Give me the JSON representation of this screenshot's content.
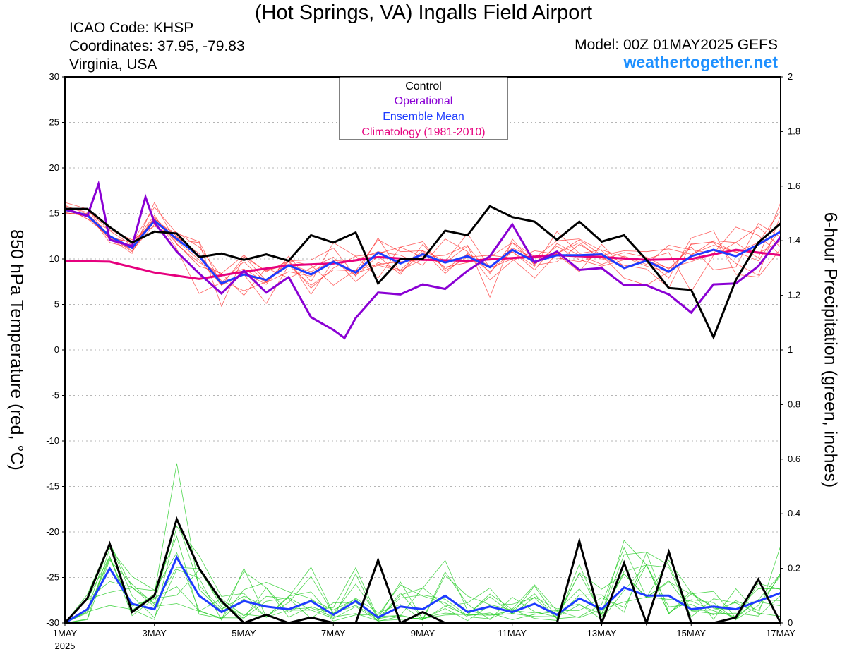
{
  "header": {
    "title": "(Hot Springs, VA) Ingalls Field Airport",
    "icao": "ICAO Code: KHSP",
    "coordinates": "Coordinates: 37.95, -79.83",
    "region": "Virginia, USA",
    "model": "Model: 00Z 01MAY2025 GEFS",
    "site": "weathertogether.net"
  },
  "chart_data": {
    "type": "line",
    "y_left_label": "850 hPa Temperature (red, °C)",
    "y_right_label": "6-hour Precipitation (green, inches)",
    "y_left_range": [
      -30,
      30
    ],
    "y_right_range": [
      0,
      2
    ],
    "y_left_ticks": [
      -30,
      -25,
      -20,
      -15,
      -10,
      -5,
      0,
      5,
      10,
      15,
      20,
      25,
      30
    ],
    "y_right_ticks": [
      "0",
      "0.2",
      "0.4",
      "0.6",
      "0.8",
      "1",
      "1.2",
      "1.4",
      "1.6",
      "1.8",
      "2"
    ],
    "x_range_days": [
      0,
      16
    ],
    "x_ticks": [
      {
        "day": 0,
        "label": "1MAY",
        "sub": "2025"
      },
      {
        "day": 2,
        "label": "3MAY"
      },
      {
        "day": 4,
        "label": "5MAY"
      },
      {
        "day": 6,
        "label": "7MAY"
      },
      {
        "day": 8,
        "label": "9MAY"
      },
      {
        "day": 10,
        "label": "11MAY"
      },
      {
        "day": 12,
        "label": "13MAY"
      },
      {
        "day": 14,
        "label": "15MAY"
      },
      {
        "day": 16,
        "label": "17MAY"
      }
    ],
    "grid": "horizontal dotted",
    "legend_position": "top-center",
    "legend": [
      {
        "name": "Control",
        "color": "#000000"
      },
      {
        "name": "Operational",
        "color": "#8a00d4"
      },
      {
        "name": "Ensemble Mean",
        "color": "#1e3cff"
      },
      {
        "name": "Climatology (1981-2010)",
        "color": "#e6007e"
      }
    ],
    "colors": {
      "members_temp": "#ff2a2a",
      "members_precip": "#22cc22"
    },
    "series": {
      "control_temp": {
        "x": [
          0,
          0.5,
          1,
          1.5,
          2,
          2.5,
          3,
          3.5,
          4,
          4.5,
          5,
          5.5,
          6,
          6.5,
          7,
          7.5,
          8,
          8.5,
          9,
          9.5,
          10,
          10.5,
          11,
          11.5,
          12,
          12.5,
          13,
          13.5,
          14,
          14.5,
          15,
          15.5,
          16
        ],
        "y": [
          15.5,
          15.5,
          13.5,
          11.8,
          13.0,
          12.8,
          10.2,
          10.6,
          9.9,
          10.5,
          9.8,
          12.6,
          11.8,
          12.9,
          7.3,
          10.0,
          10.0,
          13.1,
          12.6,
          15.8,
          14.6,
          14.1,
          12.1,
          14.1,
          11.9,
          12.6,
          9.9,
          6.8,
          6.6,
          1.4,
          7.7,
          11.8,
          13.9
        ]
      },
      "operational_temp": {
        "x": [
          0,
          0.5,
          0.75,
          1,
          1.5,
          1.8,
          2,
          2.5,
          3,
          3.5,
          4,
          4.5,
          5,
          5.5,
          6,
          6.25,
          6.5,
          7,
          7.5,
          8,
          8.5,
          9,
          9.5,
          10,
          10.5,
          11,
          11.5,
          12,
          12.5,
          13,
          13.5,
          14,
          14.5,
          15,
          15.5,
          16
        ],
        "y": [
          15.5,
          14.7,
          18.2,
          12.1,
          11.4,
          16.8,
          14.0,
          10.8,
          8.4,
          6.2,
          8.7,
          6.3,
          8.0,
          3.6,
          2.2,
          1.3,
          3.5,
          6.3,
          6.1,
          7.2,
          6.7,
          8.7,
          10.3,
          13.8,
          9.6,
          10.8,
          8.8,
          9.0,
          7.1,
          7.1,
          6.1,
          4.1,
          7.2,
          7.3,
          9.2,
          12.4
        ]
      },
      "mean_temp": {
        "x": [
          0,
          0.5,
          1,
          1.5,
          2,
          2.5,
          3,
          3.5,
          4,
          4.5,
          5,
          5.5,
          6,
          6.5,
          7,
          7.5,
          8,
          8.5,
          9,
          9.5,
          10,
          10.5,
          11,
          11.5,
          12,
          12.5,
          13,
          13.5,
          14,
          14.5,
          15,
          15.5,
          16
        ],
        "y": [
          15.4,
          14.8,
          12.5,
          11.2,
          14.2,
          12.2,
          10.3,
          7.3,
          8.3,
          7.7,
          9.3,
          8.3,
          9.7,
          8.5,
          10.7,
          9.5,
          10.5,
          9.6,
          10.3,
          9.1,
          11.0,
          9.7,
          10.4,
          10.4,
          10.5,
          9.0,
          9.8,
          8.6,
          10.3,
          11.0,
          10.3,
          11.6,
          13.0
        ]
      },
      "climatology_temp": {
        "x": [
          0,
          1,
          2,
          3,
          4,
          5,
          6,
          7,
          8,
          9,
          10,
          11,
          12,
          13,
          14,
          15,
          16
        ],
        "y": [
          9.8,
          9.7,
          8.5,
          7.8,
          8.6,
          9.3,
          9.5,
          10.2,
          9.9,
          9.8,
          10.1,
          10.4,
          10.2,
          9.9,
          10.0,
          11.0,
          10.4
        ]
      },
      "control_precip": {
        "x": [
          0,
          0.5,
          1,
          1.5,
          2,
          2.5,
          3,
          3.5,
          4,
          4.5,
          5,
          5.5,
          6,
          6.5,
          7,
          7.5,
          8,
          8.5,
          9,
          9.5,
          10,
          10.5,
          11,
          11.5,
          12,
          12.5,
          13,
          13.5,
          14,
          14.5,
          15,
          15.5,
          16
        ],
        "y": [
          0,
          0.09,
          0.29,
          0.04,
          0.1,
          0.38,
          0.2,
          0.08,
          0,
          0.03,
          0,
          0.02,
          0,
          0,
          0.23,
          0,
          0.04,
          0,
          0,
          0,
          0,
          0,
          0,
          0.3,
          0,
          0.22,
          0,
          0.26,
          0,
          0,
          0.02,
          0.16,
          0
        ]
      },
      "mean_precip": {
        "x": [
          0,
          0.5,
          1,
          1.5,
          2,
          2.5,
          3,
          3.5,
          4,
          4.5,
          5,
          5.5,
          6,
          6.5,
          7,
          7.5,
          8,
          8.5,
          9,
          9.5,
          10,
          10.5,
          11,
          11.5,
          12,
          12.5,
          13,
          13.5,
          14,
          14.5,
          15,
          15.5,
          16
        ],
        "y": [
          0,
          0.05,
          0.2,
          0.07,
          0.05,
          0.24,
          0.1,
          0.04,
          0.08,
          0.06,
          0.05,
          0.08,
          0.03,
          0.08,
          0.02,
          0.06,
          0.05,
          0.1,
          0.04,
          0.06,
          0.04,
          0.07,
          0.03,
          0.09,
          0.05,
          0.13,
          0.1,
          0.1,
          0.05,
          0.06,
          0.05,
          0.08,
          0.11
        ]
      },
      "members_temp": [
        [
          15.9,
          14.9,
          12.2,
          11.5,
          14.8,
          11.1,
          6.2,
          7.4,
          9.7,
          7.4,
          9.8,
          9.9,
          11.2,
          8.1,
          12.3,
          8.5,
          10.7,
          9.1,
          9.6,
          10.2,
          11.8,
          10.3,
          10.6,
          11.8,
          9.9,
          10.7,
          10.2,
          8.9,
          11.3,
          8.8,
          9.1,
          13.9,
          12.4
        ],
        [
          16.2,
          15.5,
          12.3,
          10.6,
          16.2,
          11.6,
          9.6,
          8.4,
          10.4,
          8.6,
          9.8,
          9.3,
          7.1,
          8.8,
          9.4,
          9.7,
          9.9,
          9.7,
          12.8,
          9.0,
          10.0,
          7.9,
          10.6,
          12.1,
          10.4,
          7.9,
          7.1,
          8.6,
          10.4,
          12.0,
          11.8,
          13.5,
          11.3
        ],
        [
          15.7,
          14.4,
          13.2,
          12.1,
          13.6,
          12.4,
          10.6,
          7.1,
          8.5,
          7.2,
          10.3,
          7.5,
          11.8,
          10.3,
          10.6,
          11.3,
          10.2,
          10.4,
          11.5,
          5.8,
          12.2,
          9.3,
          9.7,
          11.6,
          10.1,
          9.3,
          8.9,
          6.8,
          11.7,
          11.8,
          9.5,
          8.2,
          14.8
        ],
        [
          15.3,
          14.7,
          12.4,
          11.8,
          15.7,
          12.8,
          11.9,
          7.2,
          8.3,
          5.1,
          9.3,
          7.1,
          8.8,
          8.7,
          12.1,
          10.8,
          10.9,
          8.4,
          10.6,
          9.2,
          10.8,
          9.2,
          13.0,
          10.6,
          11.0,
          10.2,
          9.2,
          8.6,
          11.6,
          11.9,
          10.7,
          11.8,
          15.3
        ],
        [
          15.8,
          15.1,
          11.8,
          11.2,
          14.6,
          12.1,
          11.8,
          4.8,
          10.3,
          7.6,
          9.9,
          6.1,
          9.8,
          9.9,
          10.8,
          10.4,
          9.3,
          12.2,
          10.8,
          7.7,
          9.8,
          10.9,
          10.5,
          8.6,
          11.6,
          9.1,
          9.9,
          7.9,
          12.3,
          13.1,
          8.3,
          8.0,
          11.1
        ],
        [
          15.4,
          15.4,
          13.1,
          11.5,
          14.4,
          12.5,
          10.4,
          7.6,
          6.5,
          7.5,
          9.7,
          6.8,
          9.0,
          10.3,
          7.9,
          11.3,
          11.9,
          8.7,
          10.2,
          9.1,
          11.2,
          10.1,
          10.1,
          9.7,
          10.4,
          10.9,
          10.8,
          11.1,
          10.5,
          11.5,
          10.8,
          9.8,
          13.3
        ],
        [
          15.0,
          15.0,
          12.6,
          10.9,
          13.8,
          12.9,
          11.3,
          8.1,
          8.9,
          7.4,
          8.6,
          8.1,
          9.7,
          8.4,
          9.3,
          8.7,
          10.0,
          9.6,
          11.4,
          8.4,
          11.8,
          9.4,
          11.4,
          9.9,
          9.2,
          9.9,
          10.0,
          10.7,
          6.4,
          10.4,
          11.8,
          10.1,
          16.2
        ],
        [
          15.6,
          14.4,
          12.5,
          10.8,
          14.4,
          11.7,
          9.2,
          8.4,
          6.0,
          9.0,
          7.9,
          9.0,
          10.2,
          7.5,
          9.6,
          8.8,
          10.9,
          9.8,
          10.2,
          10.4,
          10.1,
          10.1,
          12.0,
          12.2,
          10.9,
          8.9,
          9.8,
          9.0,
          9.7,
          10.6,
          13.5,
          12.6,
          10.4
        ],
        [
          15.1,
          14.7,
          12.2,
          11.9,
          14.1,
          12.0,
          9.9,
          7.1,
          10.2,
          8.7,
          9.4,
          8.6,
          9.8,
          8.2,
          10.3,
          8.3,
          11.6,
          8.9,
          10.5,
          8.6,
          10.8,
          8.8,
          11.7,
          10.4,
          9.4,
          10.3,
          9.4,
          11.5,
          11.0,
          10.6,
          10.9,
          10.6,
          12.0
        ]
      ]
    }
  }
}
